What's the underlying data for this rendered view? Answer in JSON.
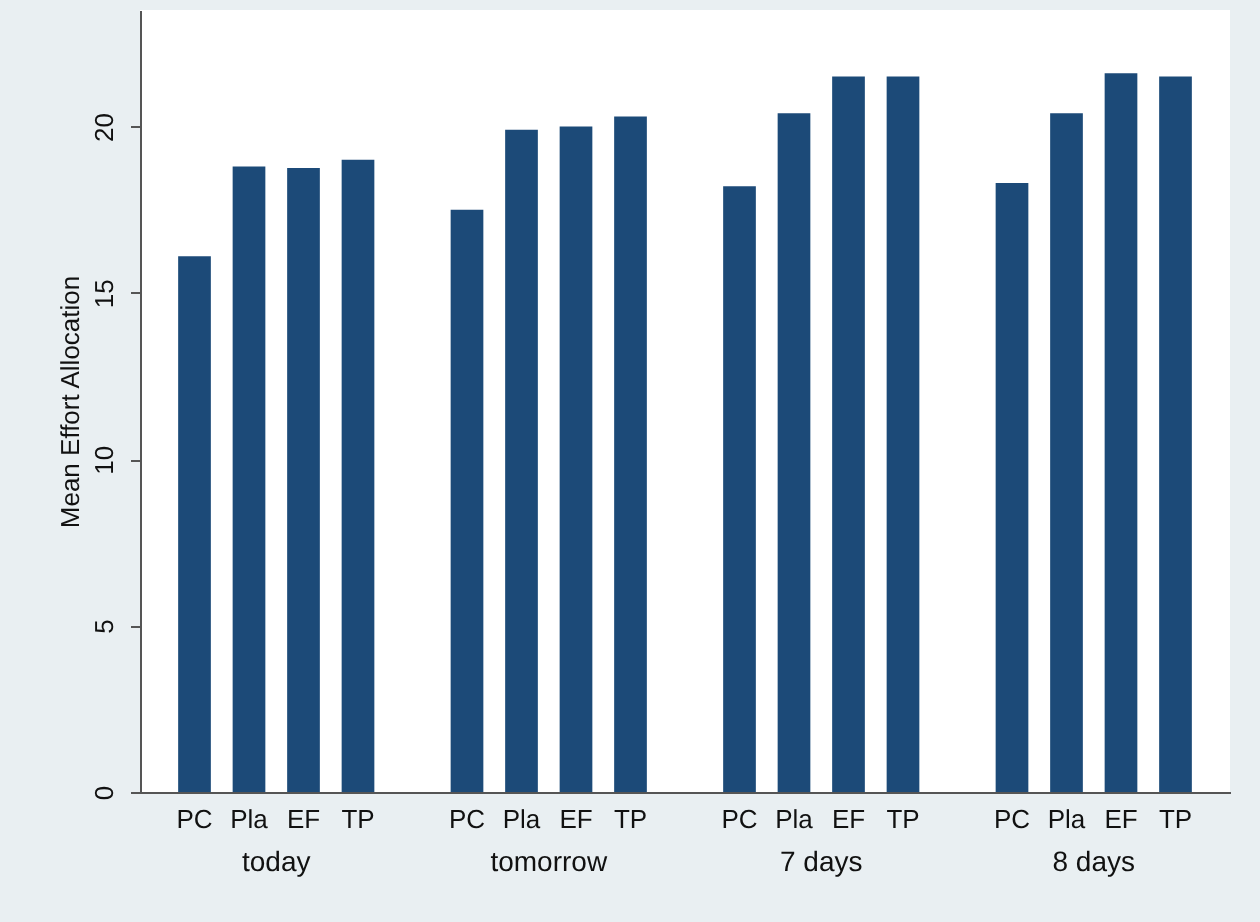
{
  "chart_data": {
    "type": "bar",
    "ylabel": "Mean Effort Allocation",
    "categories": [
      "today",
      "tomorrow",
      "7 days",
      "8 days"
    ],
    "series": [
      {
        "name": "PC",
        "color": "#1c4a78",
        "values": [
          16.1,
          17.5,
          18.2,
          18.3
        ]
      },
      {
        "name": "Pla",
        "color": "#1c4a78",
        "values": [
          18.8,
          19.9,
          20.4,
          20.4
        ]
      },
      {
        "name": "EF",
        "color": "#1c4a78",
        "values": [
          18.75,
          20.0,
          21.5,
          21.6
        ]
      },
      {
        "name": "TP",
        "color": "#1c4a78",
        "values": [
          19.0,
          20.3,
          21.5,
          21.5
        ]
      }
    ],
    "ylim": [
      0,
      23.5
    ],
    "yticks": [
      0,
      5,
      10,
      15,
      20
    ],
    "grid": false
  }
}
